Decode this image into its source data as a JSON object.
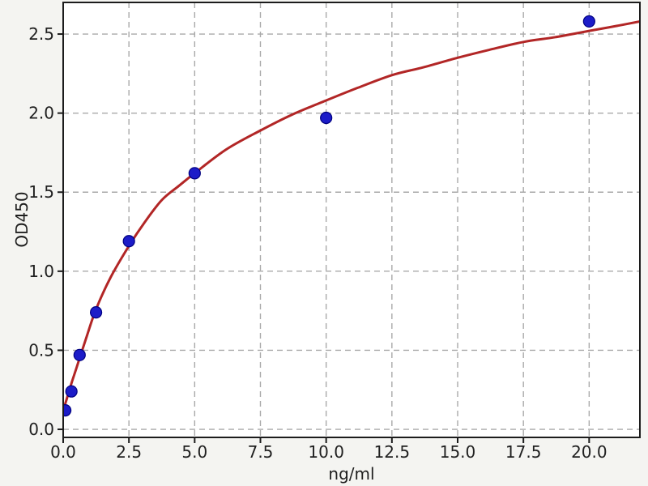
{
  "figure": {
    "background": "#f4f4f1",
    "plot_background": "#ffffff",
    "spine_color": "#1c1c1c",
    "grid_color": "#a9a9a9",
    "tick_color": "#1c1c1c",
    "text_color": "#1f1f1f"
  },
  "chart_data": {
    "type": "scatter",
    "title": "",
    "xlabel": "ng/ml",
    "ylabel": "OD450",
    "xlim": [
      0,
      21.93
    ],
    "ylim": [
      -0.051,
      2.7
    ],
    "grid": true,
    "grid_style": "dashed",
    "legend": "none",
    "x_ticks": [
      0.0,
      2.5,
      5.0,
      7.5,
      10.0,
      12.5,
      15.0,
      17.5,
      20.0
    ],
    "x_tick_labels": [
      "0.0",
      "2.5",
      "5.0",
      "7.5",
      "10.0",
      "12.5",
      "15.0",
      "17.5",
      "20.0"
    ],
    "y_ticks": [
      0.0,
      0.5,
      1.0,
      1.5,
      2.0,
      2.5
    ],
    "y_tick_labels": [
      "0.0",
      "0.5",
      "1.0",
      "1.5",
      "2.0",
      "2.5"
    ],
    "series": [
      {
        "name": "standard-points",
        "kind": "scatter",
        "marker": "circle",
        "marker_radius": 7,
        "fill_color": "#1c1cc8",
        "edge_color": "#000080",
        "x": [
          0.08,
          0.3125,
          0.625,
          1.25,
          2.5,
          5.0,
          10.0,
          20.0
        ],
        "y": [
          0.12,
          0.24,
          0.47,
          0.74,
          1.19,
          1.62,
          1.97,
          2.58
        ]
      },
      {
        "name": "fit-curve",
        "kind": "line",
        "line_color": "#b22626",
        "line_width": 3,
        "x": [
          0,
          0.15,
          0.3125,
          0.47,
          0.625,
          0.9,
          1.25,
          1.8,
          2.5,
          3.1,
          3.75,
          4.4,
          5.0,
          6.2,
          7.5,
          8.7,
          10.0,
          11.2,
          12.5,
          13.7,
          15.0,
          16.2,
          17.5,
          18.7,
          20.0,
          21.0,
          21.93
        ],
        "y": [
          0.12,
          0.2,
          0.29,
          0.37,
          0.45,
          0.59,
          0.76,
          0.96,
          1.16,
          1.31,
          1.45,
          1.54,
          1.62,
          1.77,
          1.89,
          1.99,
          2.08,
          2.16,
          2.24,
          2.29,
          2.35,
          2.4,
          2.45,
          2.48,
          2.52,
          2.55,
          2.58
        ]
      }
    ]
  }
}
